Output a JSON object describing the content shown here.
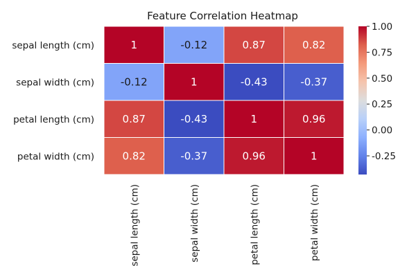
{
  "chart_data": {
    "type": "heatmap",
    "title": "Feature Correlation Heatmap",
    "rows": [
      "sepal length (cm)",
      "sepal width (cm)",
      "petal length (cm)",
      "petal width (cm)"
    ],
    "columns": [
      "sepal length (cm)",
      "sepal width (cm)",
      "petal length (cm)",
      "petal width (cm)"
    ],
    "values": [
      [
        1,
        -0.12,
        0.87,
        0.82
      ],
      [
        -0.12,
        1,
        -0.43,
        -0.37
      ],
      [
        0.87,
        -0.43,
        1,
        0.96
      ],
      [
        0.82,
        -0.37,
        0.96,
        1
      ]
    ],
    "cell_labels": [
      [
        "1",
        "-0.12",
        "0.87",
        "0.82"
      ],
      [
        "-0.12",
        "1",
        "-0.43",
        "-0.37"
      ],
      [
        "0.87",
        "-0.43",
        "1",
        "0.96"
      ],
      [
        "0.82",
        "-0.37",
        "0.96",
        "1"
      ]
    ],
    "colormap": "coolwarm",
    "colorbar": {
      "range": [
        -0.43,
        1.0
      ],
      "ticks": [
        1.0,
        0.75,
        0.5,
        0.25,
        0.0,
        -0.25
      ],
      "tick_labels": [
        "1.00",
        "0.75",
        "0.50",
        "0.25",
        "0.00",
        "-0.25"
      ],
      "position": "right"
    },
    "grid_line_color": "#ffffff"
  }
}
